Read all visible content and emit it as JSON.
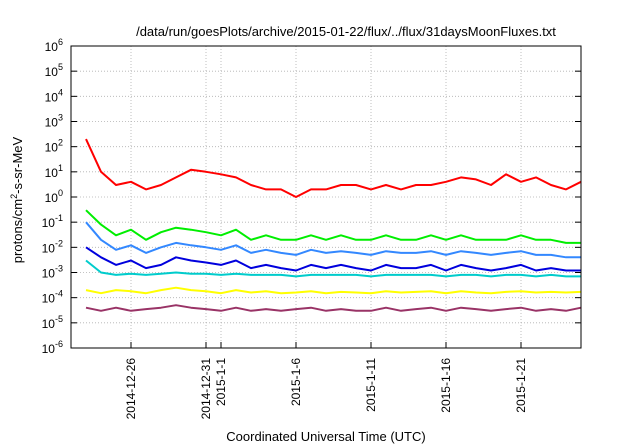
{
  "chart_data": {
    "type": "line",
    "title": "/data/run/goesPlots/archive/2015-01-22/flux/../flux/31daysMoonFluxes.txt",
    "xlabel": "Coordinated Universal Time (UTC)",
    "ylabel": "protons/cm2-s-sr-MeV",
    "ylabel_parts": {
      "pre": "protons/cm",
      "sup": "2",
      "post": "-s-sr-MeV"
    },
    "yscale": "log",
    "ylim": [
      1e-06,
      1000000
    ],
    "xlim": [
      "2014-12-22",
      "2015-01-25"
    ],
    "grid": true,
    "legend": "none",
    "y_ticks": [
      {
        "exp": -6,
        "value": 1e-06
      },
      {
        "exp": -5,
        "value": 1e-05
      },
      {
        "exp": -4,
        "value": 0.0001
      },
      {
        "exp": -3,
        "value": 0.001
      },
      {
        "exp": -2,
        "value": 0.01
      },
      {
        "exp": -1,
        "value": 0.1
      },
      {
        "exp": 0,
        "value": 1
      },
      {
        "exp": 1,
        "value": 10
      },
      {
        "exp": 2,
        "value": 100
      },
      {
        "exp": 3,
        "value": 1000
      },
      {
        "exp": 4,
        "value": 10000
      },
      {
        "exp": 5,
        "value": 100000
      },
      {
        "exp": 6,
        "value": 1000000
      }
    ],
    "x_ticks": [
      {
        "date": "2014-12-26",
        "label": "2014-12-26"
      },
      {
        "date": "2014-12-31",
        "label": "2014-12-31"
      },
      {
        "date": "2015-01-01",
        "label": "2015-1-1"
      },
      {
        "date": "2015-01-06",
        "label": "2015-1-6"
      },
      {
        "date": "2015-01-11",
        "label": "2015-1-11"
      },
      {
        "date": "2015-01-16",
        "label": "2015-1-16"
      },
      {
        "date": "2015-01-21",
        "label": "2015-1-21"
      }
    ],
    "series": [
      {
        "color": "#ff0000",
        "x": [
          "2014-12-23",
          "2014-12-24",
          "2014-12-25",
          "2014-12-26",
          "2014-12-27",
          "2014-12-28",
          "2014-12-29",
          "2014-12-30",
          "2014-12-31",
          "2015-01-01",
          "2015-01-02",
          "2015-01-03",
          "2015-01-04",
          "2015-01-05",
          "2015-01-06",
          "2015-01-07",
          "2015-01-08",
          "2015-01-09",
          "2015-01-10",
          "2015-01-11",
          "2015-01-12",
          "2015-01-13",
          "2015-01-14",
          "2015-01-15",
          "2015-01-16",
          "2015-01-17",
          "2015-01-18",
          "2015-01-19",
          "2015-01-20",
          "2015-01-21",
          "2015-01-22",
          "2015-01-23",
          "2015-01-24",
          "2015-01-25"
        ],
        "values": [
          200,
          10,
          3,
          4,
          2,
          3,
          6,
          12,
          10,
          8,
          6,
          3,
          2,
          2,
          1,
          2,
          2,
          3,
          3,
          2,
          3,
          2,
          3,
          3,
          4,
          6,
          5,
          3,
          8,
          4,
          6,
          3,
          2,
          4
        ]
      },
      {
        "color": "#00ee00",
        "x": [
          "2014-12-23",
          "2014-12-24",
          "2014-12-25",
          "2014-12-26",
          "2014-12-27",
          "2014-12-28",
          "2014-12-29",
          "2014-12-30",
          "2014-12-31",
          "2015-01-01",
          "2015-01-02",
          "2015-01-03",
          "2015-01-04",
          "2015-01-05",
          "2015-01-06",
          "2015-01-07",
          "2015-01-08",
          "2015-01-09",
          "2015-01-10",
          "2015-01-11",
          "2015-01-12",
          "2015-01-13",
          "2015-01-14",
          "2015-01-15",
          "2015-01-16",
          "2015-01-17",
          "2015-01-18",
          "2015-01-19",
          "2015-01-20",
          "2015-01-21",
          "2015-01-22",
          "2015-01-23",
          "2015-01-24",
          "2015-01-25"
        ],
        "values": [
          0.3,
          0.08,
          0.03,
          0.05,
          0.02,
          0.04,
          0.06,
          0.05,
          0.04,
          0.03,
          0.05,
          0.02,
          0.03,
          0.02,
          0.02,
          0.03,
          0.02,
          0.03,
          0.02,
          0.02,
          0.03,
          0.02,
          0.02,
          0.03,
          0.02,
          0.03,
          0.02,
          0.02,
          0.02,
          0.03,
          0.02,
          0.02,
          0.015,
          0.015
        ]
      },
      {
        "color": "#3388ff",
        "x": [
          "2014-12-23",
          "2014-12-24",
          "2014-12-25",
          "2014-12-26",
          "2014-12-27",
          "2014-12-28",
          "2014-12-29",
          "2014-12-30",
          "2014-12-31",
          "2015-01-01",
          "2015-01-02",
          "2015-01-03",
          "2015-01-04",
          "2015-01-05",
          "2015-01-06",
          "2015-01-07",
          "2015-01-08",
          "2015-01-09",
          "2015-01-10",
          "2015-01-11",
          "2015-01-12",
          "2015-01-13",
          "2015-01-14",
          "2015-01-15",
          "2015-01-16",
          "2015-01-17",
          "2015-01-18",
          "2015-01-19",
          "2015-01-20",
          "2015-01-21",
          "2015-01-22",
          "2015-01-23",
          "2015-01-24",
          "2015-01-25"
        ],
        "values": [
          0.1,
          0.02,
          0.008,
          0.012,
          0.006,
          0.01,
          0.015,
          0.012,
          0.01,
          0.008,
          0.012,
          0.006,
          0.008,
          0.006,
          0.005,
          0.008,
          0.006,
          0.007,
          0.006,
          0.005,
          0.007,
          0.006,
          0.006,
          0.007,
          0.005,
          0.007,
          0.006,
          0.005,
          0.006,
          0.007,
          0.005,
          0.005,
          0.004,
          0.004
        ]
      },
      {
        "color": "#0000dd",
        "x": [
          "2014-12-23",
          "2014-12-24",
          "2014-12-25",
          "2014-12-26",
          "2014-12-27",
          "2014-12-28",
          "2014-12-29",
          "2014-12-30",
          "2014-12-31",
          "2015-01-01",
          "2015-01-02",
          "2015-01-03",
          "2015-01-04",
          "2015-01-05",
          "2015-01-06",
          "2015-01-07",
          "2015-01-08",
          "2015-01-09",
          "2015-01-10",
          "2015-01-11",
          "2015-01-12",
          "2015-01-13",
          "2015-01-14",
          "2015-01-15",
          "2015-01-16",
          "2015-01-17",
          "2015-01-18",
          "2015-01-19",
          "2015-01-20",
          "2015-01-21",
          "2015-01-22",
          "2015-01-23",
          "2015-01-24",
          "2015-01-25"
        ],
        "values": [
          0.01,
          0.004,
          0.002,
          0.003,
          0.0015,
          0.002,
          0.004,
          0.003,
          0.0025,
          0.002,
          0.003,
          0.0015,
          0.002,
          0.0015,
          0.0012,
          0.002,
          0.0015,
          0.002,
          0.0015,
          0.0012,
          0.002,
          0.0015,
          0.0015,
          0.002,
          0.0012,
          0.002,
          0.0015,
          0.0012,
          0.0015,
          0.002,
          0.0012,
          0.0015,
          0.0012,
          0.0012
        ]
      },
      {
        "color": "#00cccc",
        "x": [
          "2014-12-23",
          "2014-12-24",
          "2014-12-25",
          "2014-12-26",
          "2014-12-27",
          "2014-12-28",
          "2014-12-29",
          "2014-12-30",
          "2014-12-31",
          "2015-01-01",
          "2015-01-02",
          "2015-01-03",
          "2015-01-04",
          "2015-01-05",
          "2015-01-06",
          "2015-01-07",
          "2015-01-08",
          "2015-01-09",
          "2015-01-10",
          "2015-01-11",
          "2015-01-12",
          "2015-01-13",
          "2015-01-14",
          "2015-01-15",
          "2015-01-16",
          "2015-01-17",
          "2015-01-18",
          "2015-01-19",
          "2015-01-20",
          "2015-01-21",
          "2015-01-22",
          "2015-01-23",
          "2015-01-24",
          "2015-01-25"
        ],
        "values": [
          0.003,
          0.001,
          0.0008,
          0.0009,
          0.0008,
          0.0009,
          0.001,
          0.0009,
          0.0009,
          0.0008,
          0.0009,
          0.0008,
          0.0008,
          0.0008,
          0.0007,
          0.0008,
          0.0008,
          0.0008,
          0.0008,
          0.0007,
          0.0008,
          0.0008,
          0.0008,
          0.0008,
          0.0007,
          0.0008,
          0.0008,
          0.0007,
          0.0008,
          0.0008,
          0.0007,
          0.0008,
          0.0007,
          0.0007
        ]
      },
      {
        "color": "#ffff00",
        "x": [
          "2014-12-23",
          "2014-12-24",
          "2014-12-25",
          "2014-12-26",
          "2014-12-27",
          "2014-12-28",
          "2014-12-29",
          "2014-12-30",
          "2014-12-31",
          "2015-01-01",
          "2015-01-02",
          "2015-01-03",
          "2015-01-04",
          "2015-01-05",
          "2015-01-06",
          "2015-01-07",
          "2015-01-08",
          "2015-01-09",
          "2015-01-10",
          "2015-01-11",
          "2015-01-12",
          "2015-01-13",
          "2015-01-14",
          "2015-01-15",
          "2015-01-16",
          "2015-01-17",
          "2015-01-18",
          "2015-01-19",
          "2015-01-20",
          "2015-01-21",
          "2015-01-22",
          "2015-01-23",
          "2015-01-24",
          "2015-01-25"
        ],
        "values": [
          0.0002,
          0.00015,
          0.0002,
          0.00018,
          0.00015,
          0.0002,
          0.00025,
          0.0002,
          0.00018,
          0.00015,
          0.0002,
          0.00016,
          0.00018,
          0.00015,
          0.00016,
          0.00018,
          0.00015,
          0.00017,
          0.00016,
          0.00015,
          0.00018,
          0.00016,
          0.00017,
          0.00018,
          0.00015,
          0.00018,
          0.00016,
          0.00015,
          0.00017,
          0.00018,
          0.00016,
          0.00017,
          0.00016,
          0.00017
        ]
      },
      {
        "color": "#993366",
        "x": [
          "2014-12-23",
          "2014-12-24",
          "2014-12-25",
          "2014-12-26",
          "2014-12-27",
          "2014-12-28",
          "2014-12-29",
          "2014-12-30",
          "2014-12-31",
          "2015-01-01",
          "2015-01-02",
          "2015-01-03",
          "2015-01-04",
          "2015-01-05",
          "2015-01-06",
          "2015-01-07",
          "2015-01-08",
          "2015-01-09",
          "2015-01-10",
          "2015-01-11",
          "2015-01-12",
          "2015-01-13",
          "2015-01-14",
          "2015-01-15",
          "2015-01-16",
          "2015-01-17",
          "2015-01-18",
          "2015-01-19",
          "2015-01-20",
          "2015-01-21",
          "2015-01-22",
          "2015-01-23",
          "2015-01-24",
          "2015-01-25"
        ],
        "values": [
          4e-05,
          3e-05,
          4e-05,
          3e-05,
          3.5e-05,
          4e-05,
          5e-05,
          4e-05,
          3.5e-05,
          3e-05,
          4e-05,
          3e-05,
          3.5e-05,
          3e-05,
          3.5e-05,
          4e-05,
          3e-05,
          3.5e-05,
          3e-05,
          3e-05,
          4e-05,
          3e-05,
          3.5e-05,
          4e-05,
          3e-05,
          4e-05,
          3.5e-05,
          3e-05,
          3.5e-05,
          4e-05,
          3e-05,
          3.5e-05,
          3e-05,
          4e-05
        ]
      }
    ]
  }
}
